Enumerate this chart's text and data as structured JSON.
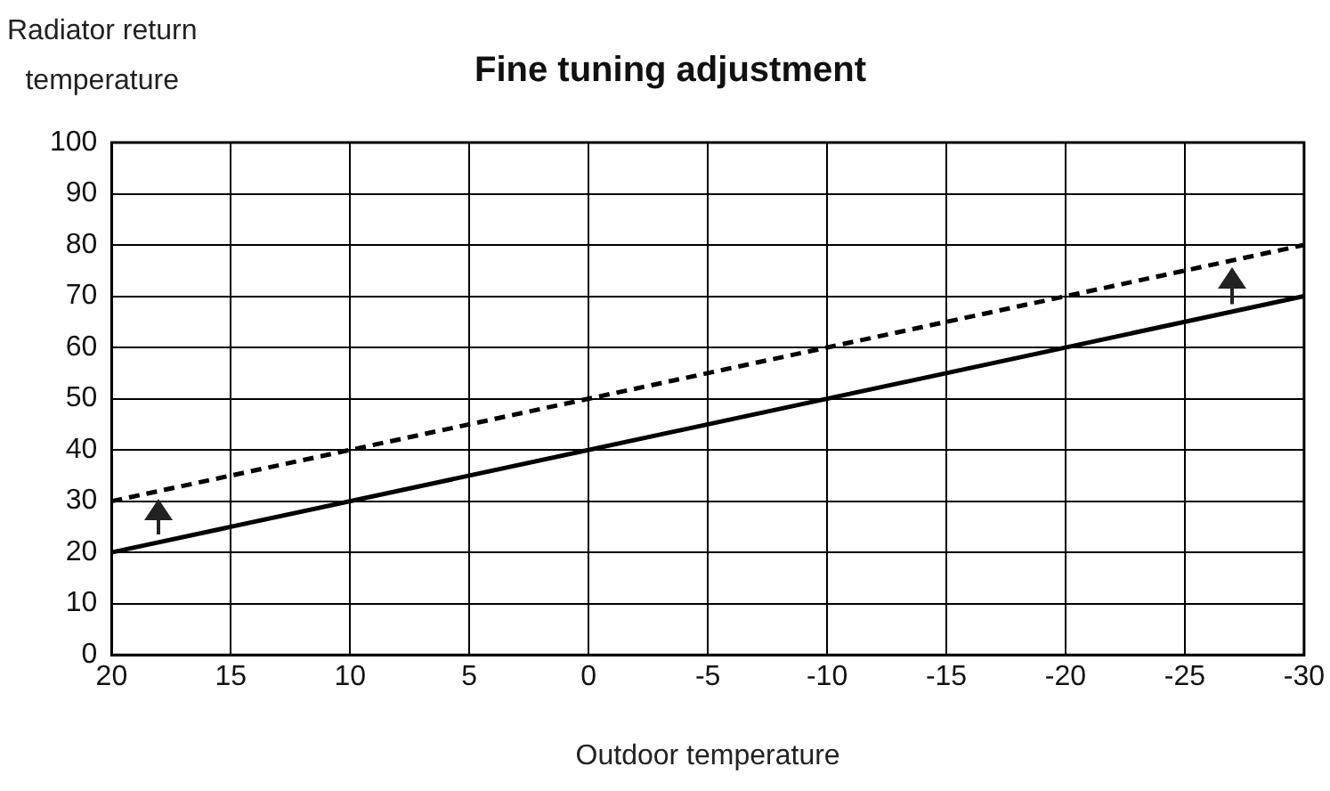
{
  "chart_data": {
    "type": "line",
    "title": "Fine tuning adjustment",
    "xlabel": "Outdoor temperature",
    "ylabel": "Radiator return\ntemperature",
    "x": [
      20,
      -30
    ],
    "series": [
      {
        "color": "#000000",
        "values": [
          20,
          70
        ],
        "line_style": "solid"
      },
      {
        "color": "#000000",
        "values": [
          30,
          80
        ],
        "line_style": "dashed"
      }
    ],
    "xlim": [
      20,
      -30
    ],
    "xticks": [
      20,
      15,
      10,
      5,
      0,
      -5,
      -10,
      -15,
      -20,
      -25,
      -30
    ],
    "ylim": [
      0,
      100
    ],
    "yticks": [
      0,
      10,
      20,
      30,
      40,
      50,
      60,
      70,
      80,
      90,
      100
    ],
    "grid": true,
    "legend": false,
    "marker": "none"
  }
}
